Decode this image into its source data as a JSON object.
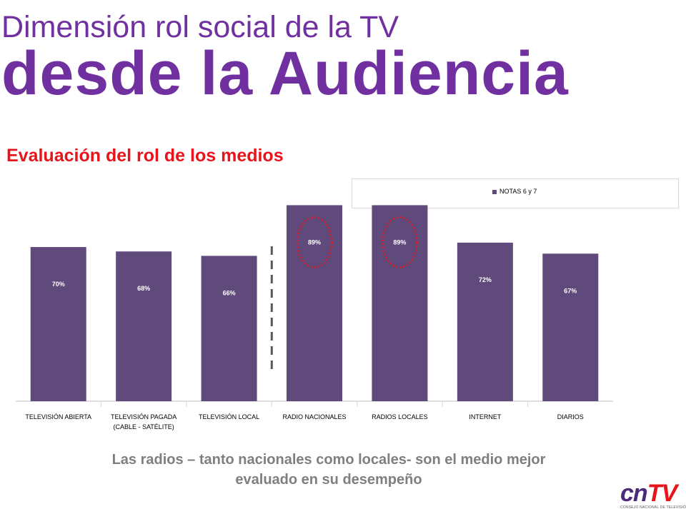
{
  "header": {
    "title_line1": "Dimensión rol social de la TV",
    "title_line2": "desde la Audiencia",
    "section_title": "Evaluación del rol de los medios"
  },
  "chart_data": {
    "type": "bar",
    "categories": [
      [
        "TELEVISIÓN ABIERTA"
      ],
      [
        "TELEVISIÓN PAGADA",
        "(CABLE - SATÉLITE)"
      ],
      [
        "TELEVISIÓN LOCAL"
      ],
      [
        "RADIO NACIONALES"
      ],
      [
        "RADIOS LOCALES"
      ],
      [
        "INTERNET"
      ],
      [
        "DIARIOS"
      ]
    ],
    "series": [
      {
        "name": "NOTAS 6 y 7",
        "values": [
          70,
          68,
          66,
          89,
          89,
          72,
          67
        ],
        "color": "#604a7b"
      }
    ],
    "data_labels": [
      "70%",
      "68%",
      "66%",
      "89%",
      "89%",
      "72%",
      "67%"
    ],
    "ylim": [
      0,
      100
    ],
    "grid": false,
    "legend": "top-right",
    "highlighted": [
      "RADIO NACIONALES",
      "RADIOS LOCALES"
    ],
    "highlight_color": "#e8141b",
    "divider_after_category": 3
  },
  "caption": {
    "line1": "Las radios – tanto nacionales como locales- son el medio mejor",
    "line2": "evaluado en su desempeño"
  },
  "logo": {
    "mark_left": "cn",
    "mark_right": "TV",
    "subtitle": "CONSEJO NACIONAL DE TELEVISIÓN"
  }
}
